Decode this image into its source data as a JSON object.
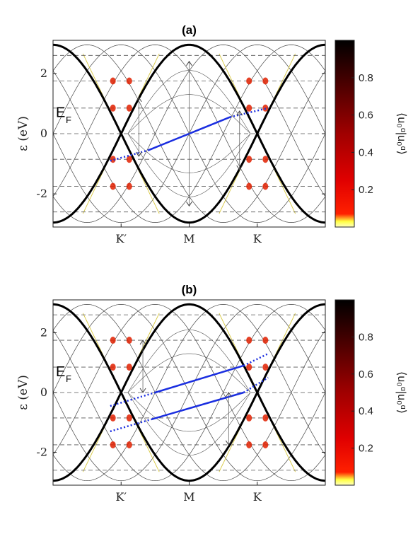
{
  "chart_data": [
    {
      "panel": "(a)",
      "type": "line",
      "title": "(a)",
      "ylabel": "ε (eV)",
      "ylim": [
        -3.1,
        3.1
      ],
      "yticks": [
        -2,
        0,
        2
      ],
      "xtick_labels": [
        "K′",
        "M",
        "K"
      ],
      "xtick_positions": [
        0.5,
        1.0,
        1.5
      ],
      "fermi_label": "E",
      "fermi_sub": "F",
      "landau_levels": [
        -2.6,
        -1.75,
        -0.85,
        0,
        0.85,
        1.75,
        2.6
      ],
      "main_band_amplitude": 2.95,
      "series": [
        {
          "x": [
            0.0,
            0.25,
            0.5,
            0.75,
            1.0,
            1.25,
            1.5,
            1.75,
            2.0
          ],
          "y": [
            2.95,
            2.1,
            0.0,
            -2.1,
            -2.95,
            -2.1,
            0.0,
            2.1,
            2.95
          ]
        }
      ],
      "valley_gaps": [
        0.0,
        0.0
      ],
      "solid_transition": {
        "x": [
          0.7,
          1.3
        ],
        "y": [
          -0.55,
          0.55
        ]
      },
      "dotted_transitions": [
        {
          "x": [
            0.42,
            0.7
          ],
          "y": [
            -0.9,
            -0.55
          ]
        },
        {
          "x": [
            1.3,
            1.58
          ],
          "y": [
            0.55,
            0.85
          ]
        }
      ],
      "arrows": [
        {
          "x": 0.63,
          "y0": -0.75,
          "y1": 1.2
        },
        {
          "x": 1.0,
          "y0": -2.4,
          "y1": 2.4
        },
        {
          "x": 1.37,
          "y0": -1.2,
          "y1": 0.75
        }
      ],
      "colorbar": {
        "label": "⟨u₀ᵅ|u₀ᵅ⟩",
        "ticks": [
          0.2,
          0.4,
          0.6,
          0.8
        ],
        "range": [
          0,
          1
        ],
        "colormap": "hot_r"
      }
    },
    {
      "panel": "(b)",
      "type": "line",
      "title": "(b)",
      "ylabel": "ε (eV)",
      "ylim": [
        -3.1,
        3.1
      ],
      "yticks": [
        -2,
        0,
        2
      ],
      "xtick_labels": [
        "K′",
        "M",
        "K"
      ],
      "xtick_positions": [
        0.5,
        1.0,
        1.5
      ],
      "fermi_label": "E",
      "fermi_sub": "F",
      "landau_levels": [
        -2.6,
        -1.75,
        -0.85,
        0,
        0.85,
        1.75,
        2.6
      ],
      "main_band_amplitude": 2.95,
      "series": [
        {
          "x": [
            0.0,
            0.25,
            0.5,
            0.75,
            1.0,
            1.25,
            1.5,
            1.75,
            2.0
          ],
          "y": [
            2.95,
            2.1,
            0.0,
            -2.1,
            -2.95,
            -2.1,
            0.0,
            2.1,
            2.95
          ]
        }
      ],
      "valley_gaps": [
        -0.45,
        1.3
      ],
      "solid_transition": {
        "x": [
          0.75,
          1.4
        ],
        "y": [
          0.0,
          0.9
        ]
      },
      "solid_transition_2": {
        "x": [
          0.72,
          1.4
        ],
        "y": [
          -0.9,
          0.0
        ]
      },
      "dotted_transitions": [
        {
          "x": [
            0.42,
            0.75
          ],
          "y": [
            -0.45,
            0.0
          ]
        },
        {
          "x": [
            1.4,
            1.58
          ],
          "y": [
            0.9,
            1.3
          ]
        },
        {
          "x": [
            0.42,
            0.72
          ],
          "y": [
            -1.3,
            -0.9
          ]
        },
        {
          "x": [
            1.4,
            1.58
          ],
          "y": [
            0.0,
            0.5
          ]
        }
      ],
      "arrows": [
        {
          "x": 0.66,
          "y0": 0.0,
          "y1": 1.75
        },
        {
          "x": 1.29,
          "y0": -1.75,
          "y1": 0.0
        }
      ],
      "colorbar": {
        "label": "⟨u₀ᵅ|u₀ᵅ⟩",
        "ticks": [
          0.2,
          0.4,
          0.6,
          0.8
        ],
        "range": [
          0,
          1
        ],
        "colormap": "hot_r"
      }
    }
  ]
}
